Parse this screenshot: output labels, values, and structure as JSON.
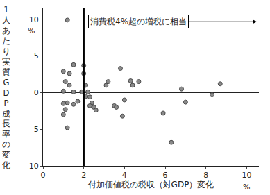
{
  "chart_data": {
    "type": "scatter",
    "x_label": "付加価値税の税収（対GDP）変化",
    "y_label": "1人あたり実質GDP成長率の変化",
    "x_unit": "%",
    "y_unit": "%",
    "reference_line": {
      "x": 2,
      "label": "消費税4%超の増税に相当"
    },
    "x": [
      1.2,
      1.0,
      1.3,
      1.5,
      1.1,
      1.3,
      1.0,
      1.5,
      1.2,
      1.5,
      1.0,
      1.1,
      1.7,
      1.9,
      1.2,
      1.0,
      2.0,
      2.0,
      2.1,
      2.2,
      2.3,
      2.4,
      2.5,
      2.6,
      2.3,
      2.1,
      3.1,
      3.2,
      3.5,
      3.6,
      3.8,
      3.9,
      4.0,
      4.3,
      4.4,
      4.7,
      5.9,
      6.3,
      6.8,
      7.0,
      8.3,
      8.7
    ],
    "values": [
      9.9,
      2.9,
      2.6,
      3.8,
      1.5,
      1.0,
      0.2,
      0.1,
      -1.4,
      -1.6,
      -1.5,
      -2.3,
      -1.2,
      0.1,
      -4.8,
      -3.0,
      3.7,
      2.6,
      1.0,
      0.1,
      -0.6,
      -1.4,
      -2.0,
      -2.4,
      -1.8,
      -0.5,
      1.0,
      1.5,
      -1.8,
      -2.0,
      3.3,
      -3.2,
      -1.0,
      1.6,
      1.0,
      1.5,
      -2.8,
      -6.8,
      0.5,
      -1.3,
      -0.3,
      1.2
    ],
    "color": "#8a8a8a",
    "marker": "circle",
    "xlim": [
      0,
      10.6
    ],
    "ylim": [
      -10,
      11.5
    ],
    "xticks": [
      0,
      2,
      4,
      6,
      8,
      10
    ],
    "yticks": [
      -10,
      -5,
      0,
      5,
      10
    ],
    "grid": false
  }
}
